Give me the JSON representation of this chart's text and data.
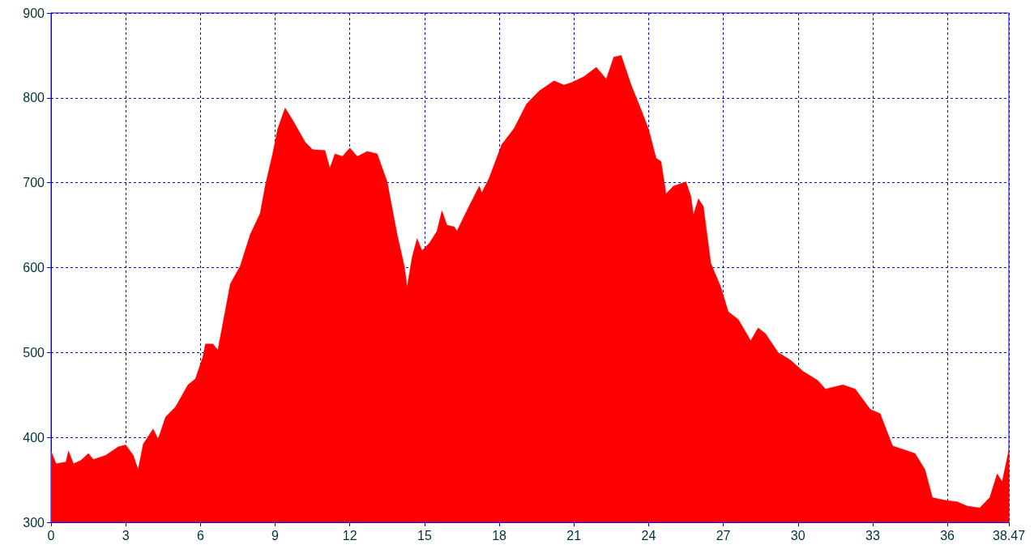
{
  "chart_data": {
    "type": "area",
    "x": [
      0,
      0.2,
      0.6,
      0.7,
      0.9,
      1.2,
      1.5,
      1.7,
      2.2,
      2.7,
      3.0,
      3.3,
      3.5,
      3.7,
      4.1,
      4.3,
      4.6,
      5.0,
      5.5,
      5.8,
      6.1,
      6.2,
      6.5,
      6.7,
      6.9,
      7.2,
      7.6,
      8.0,
      8.4,
      8.6,
      8.9,
      9.1,
      9.4,
      9.7,
      10.2,
      10.5,
      11.0,
      11.2,
      11.4,
      11.7,
      12.0,
      12.3,
      12.7,
      13.1,
      13.5,
      13.9,
      14.2,
      14.3,
      14.5,
      14.7,
      14.9,
      15.2,
      15.5,
      15.7,
      15.9,
      16.2,
      16.3,
      16.7,
      17.2,
      17.3,
      17.6,
      18.1,
      18.6,
      19.1,
      19.6,
      20.2,
      20.6,
      20.9,
      21.4,
      21.9,
      22.3,
      22.6,
      22.9,
      23.3,
      23.7,
      24.0,
      24.3,
      24.5,
      24.7,
      25.0,
      25.5,
      25.7,
      25.8,
      26.0,
      26.2,
      26.5,
      26.9,
      27.2,
      27.6,
      28.1,
      28.4,
      28.7,
      29.2,
      29.7,
      30.2,
      30.8,
      31.1,
      31.8,
      32.3,
      32.9,
      33.3,
      33.8,
      34.2,
      34.7,
      35.1,
      35.4,
      35.9,
      36.4,
      36.8,
      37.3,
      37.7,
      38.0,
      38.2,
      38.47
    ],
    "values": [
      384,
      369,
      371,
      384,
      369,
      373,
      381,
      374,
      379,
      389,
      391,
      379,
      362,
      392,
      410,
      398,
      424,
      436,
      462,
      469,
      495,
      510,
      510,
      503,
      534,
      581,
      602,
      639,
      664,
      696,
      734,
      763,
      788,
      774,
      748,
      739,
      738,
      717,
      734,
      731,
      741,
      731,
      737,
      734,
      701,
      639,
      600,
      577,
      612,
      634,
      620,
      629,
      643,
      667,
      650,
      648,
      643,
      667,
      696,
      688,
      706,
      745,
      764,
      793,
      808,
      820,
      815,
      818,
      825,
      836,
      822,
      848,
      850,
      815,
      786,
      763,
      729,
      725,
      687,
      696,
      701,
      684,
      662,
      681,
      672,
      605,
      577,
      548,
      539,
      514,
      529,
      522,
      500,
      491,
      478,
      467,
      457,
      462,
      457,
      433,
      428,
      390,
      386,
      381,
      362,
      329,
      326,
      324,
      319,
      317,
      329,
      357,
      348,
      385
    ],
    "color": "#ff0000",
    "xlim": [
      0,
      38.47
    ],
    "xticks": [
      0,
      3,
      6,
      9,
      12,
      15,
      18,
      21,
      24,
      27,
      30,
      33,
      36,
      38.47
    ],
    "ylim": [
      300,
      900
    ],
    "yticks": [
      300,
      400,
      500,
      600,
      700,
      800,
      900
    ],
    "grid": true
  }
}
